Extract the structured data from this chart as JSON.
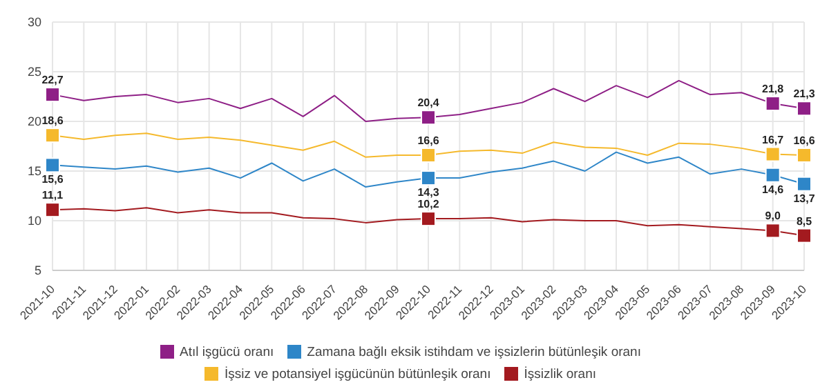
{
  "chart_data": {
    "type": "line",
    "categories": [
      "2021-10",
      "2021-11",
      "2021-12",
      "2022-01",
      "2022-02",
      "2022-03",
      "2022-04",
      "2022-05",
      "2022-06",
      "2022-07",
      "2022-08",
      "2022-09",
      "2022-10",
      "2022-11",
      "2022-12",
      "2023-01",
      "2023-02",
      "2023-03",
      "2023-04",
      "2023-05",
      "2023-06",
      "2023-07",
      "2023-08",
      "2023-09",
      "2023-10"
    ],
    "series": [
      {
        "name": "İşsizlik oranı",
        "color": "#a31a1f",
        "values": [
          11.1,
          11.2,
          11.0,
          11.3,
          10.8,
          11.1,
          10.8,
          10.8,
          10.3,
          10.2,
          9.8,
          10.1,
          10.2,
          10.2,
          10.3,
          9.9,
          10.1,
          10.0,
          10.0,
          9.5,
          9.6,
          9.4,
          9.2,
          9.0,
          8.5
        ],
        "value_labels": [
          "11,1",
          null,
          null,
          null,
          null,
          null,
          null,
          null,
          null,
          null,
          null,
          null,
          "10,2",
          null,
          null,
          null,
          null,
          null,
          null,
          null,
          null,
          null,
          null,
          "9,0",
          "8,5"
        ]
      },
      {
        "name": "Zamana bağlı eksik istihdam ve işsizlerin bütünleşik oranı",
        "color": "#2e86c8",
        "values": [
          15.6,
          15.4,
          15.2,
          15.5,
          14.9,
          15.3,
          14.3,
          15.8,
          14.0,
          15.2,
          13.4,
          13.9,
          14.3,
          14.3,
          14.9,
          15.3,
          16.0,
          15.0,
          16.9,
          15.8,
          16.4,
          14.7,
          15.2,
          14.6,
          13.7
        ],
        "value_labels": [
          "15,6",
          null,
          null,
          null,
          null,
          null,
          null,
          null,
          null,
          null,
          null,
          null,
          "14,3",
          null,
          null,
          null,
          null,
          null,
          null,
          null,
          null,
          null,
          null,
          "14,6",
          "13,7"
        ]
      },
      {
        "name": "İşsiz ve potansiyel işgücünün bütünleşik oranı",
        "color": "#f5b92c",
        "values": [
          18.6,
          18.2,
          18.6,
          18.8,
          18.2,
          18.4,
          18.1,
          17.6,
          17.1,
          18.0,
          16.4,
          16.6,
          16.6,
          17.0,
          17.1,
          16.8,
          17.9,
          17.4,
          17.3,
          16.6,
          17.8,
          17.7,
          17.3,
          16.7,
          16.6
        ],
        "value_labels": [
          "18,6",
          null,
          null,
          null,
          null,
          null,
          null,
          null,
          null,
          null,
          null,
          null,
          "16,6",
          null,
          null,
          null,
          null,
          null,
          null,
          null,
          null,
          null,
          null,
          "16,7",
          "16,6"
        ]
      },
      {
        "name": "Atıl işgücü oranı",
        "color": "#8e1f86",
        "values": [
          22.7,
          22.1,
          22.5,
          22.7,
          21.9,
          22.3,
          21.3,
          22.3,
          20.5,
          22.6,
          20.0,
          20.3,
          20.4,
          20.7,
          21.3,
          21.9,
          23.3,
          22.0,
          23.6,
          22.4,
          24.1,
          22.7,
          22.9,
          21.8,
          21.3
        ],
        "value_labels": [
          "22,7",
          null,
          null,
          null,
          null,
          null,
          null,
          null,
          null,
          null,
          null,
          null,
          "20,4",
          null,
          null,
          null,
          null,
          null,
          null,
          null,
          null,
          null,
          null,
          "21,8",
          "21,3"
        ]
      }
    ],
    "ylim": [
      5,
      30
    ],
    "yticks": [
      5,
      10,
      15,
      20,
      25,
      30
    ],
    "grid": true,
    "legend": "bottom",
    "line_style": "solid"
  }
}
